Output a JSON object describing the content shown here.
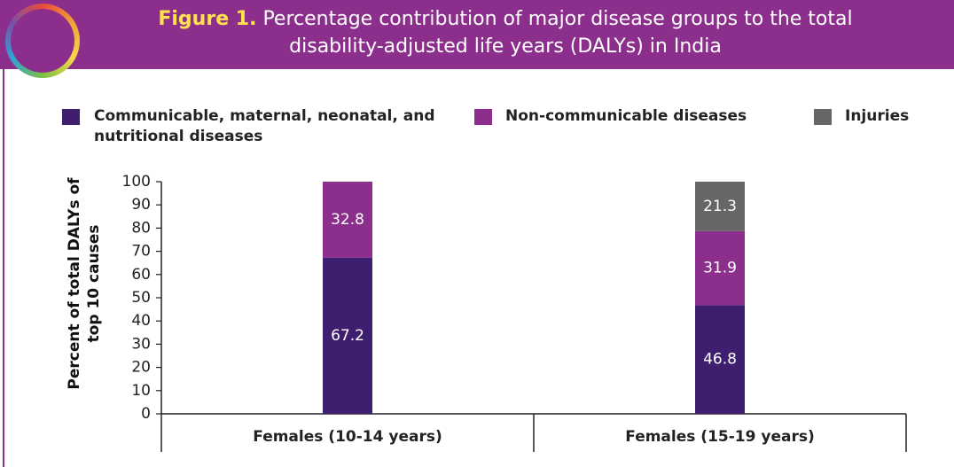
{
  "chart_data": {
    "type": "stacked_bar",
    "figure_label": "Figure 1.",
    "title": "Percentage contribution of major disease groups to the total disability-adjusted life years (DALYs) in India",
    "y_label": "Percent of total DALYs of top 10 causes",
    "categories": [
      "Females (10-14 years)",
      "Females (15-19 years)"
    ],
    "series": [
      {
        "name": "Communicable, maternal, neonatal, and nutritional diseases",
        "color": "#3e1f6f",
        "values": [
          67.2,
          46.8
        ]
      },
      {
        "name": "Non-communicable diseases",
        "color": "#8c2f8c",
        "values": [
          32.8,
          31.9
        ]
      },
      {
        "name": "Injuries",
        "color": "#666666",
        "values": [
          null,
          21.3
        ]
      }
    ],
    "ylim": [
      0,
      100
    ],
    "yticks": [
      0,
      10,
      20,
      30,
      40,
      50,
      60,
      70,
      80,
      90,
      100
    ]
  }
}
